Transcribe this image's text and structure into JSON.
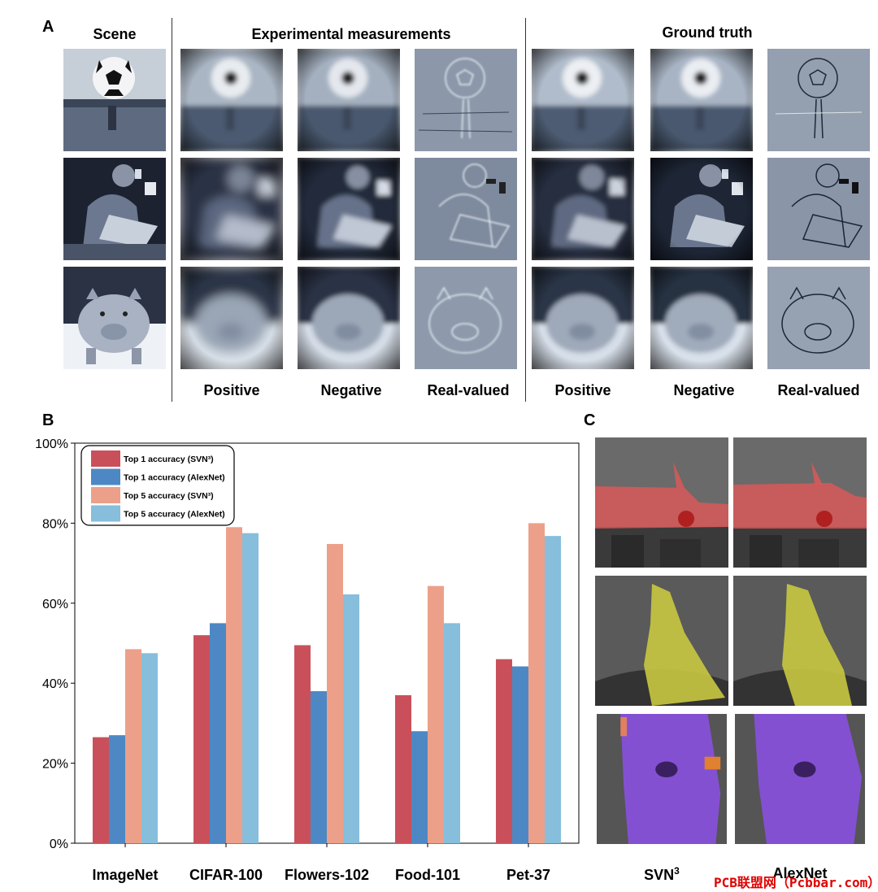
{
  "panel_a": {
    "letter": "A",
    "headers": {
      "scene": "Scene",
      "experimental": "Experimental measurements",
      "ground_truth": "Ground truth"
    },
    "column_labels": [
      "Positive",
      "Negative",
      "Real-valued",
      "Positive",
      "Negative",
      "Real-valued"
    ],
    "rows": [
      "soccer-ball",
      "man-laptop",
      "piggy-bank"
    ]
  },
  "panel_b": {
    "letter": "B"
  },
  "panel_c": {
    "letter": "C",
    "column_labels": {
      "svn": "SVN",
      "svn_sup": "3",
      "alexnet": "AlexNet"
    },
    "rows": [
      {
        "name": "airplane",
        "color": "#e85050"
      },
      {
        "name": "bird",
        "color": "#d8d040"
      },
      {
        "name": "dog",
        "color": "#8040e0"
      }
    ]
  },
  "watermark": "PCB联盟网（Pcbbar.com）",
  "chart_data": {
    "type": "bar",
    "categories": [
      "ImageNet",
      "CIFAR-100",
      "Flowers-102",
      "Food-101",
      "Pet-37"
    ],
    "series": [
      {
        "name": "Top 1 accuracy (SVN³)",
        "color": "#c9505a",
        "values": [
          26.5,
          52,
          49.5,
          37,
          46
        ]
      },
      {
        "name": "Top 1 accuracy (AlexNet)",
        "color": "#4d88c4",
        "values": [
          27,
          55,
          38,
          28,
          44.2
        ]
      },
      {
        "name": "Top 5 accuracy (SVN³)",
        "color": "#eca08a",
        "values": [
          48.5,
          79,
          74.8,
          64.3,
          80
        ]
      },
      {
        "name": "Top 5 accuracy (AlexNet)",
        "color": "#86bedc",
        "values": [
          47.5,
          77.5,
          62.2,
          55,
          76.8
        ]
      }
    ],
    "yticks": [
      "0%",
      "20%",
      "40%",
      "60%",
      "80%",
      "100%"
    ],
    "ylim": [
      0,
      100
    ],
    "legend_position": "top-left",
    "grid": false
  }
}
